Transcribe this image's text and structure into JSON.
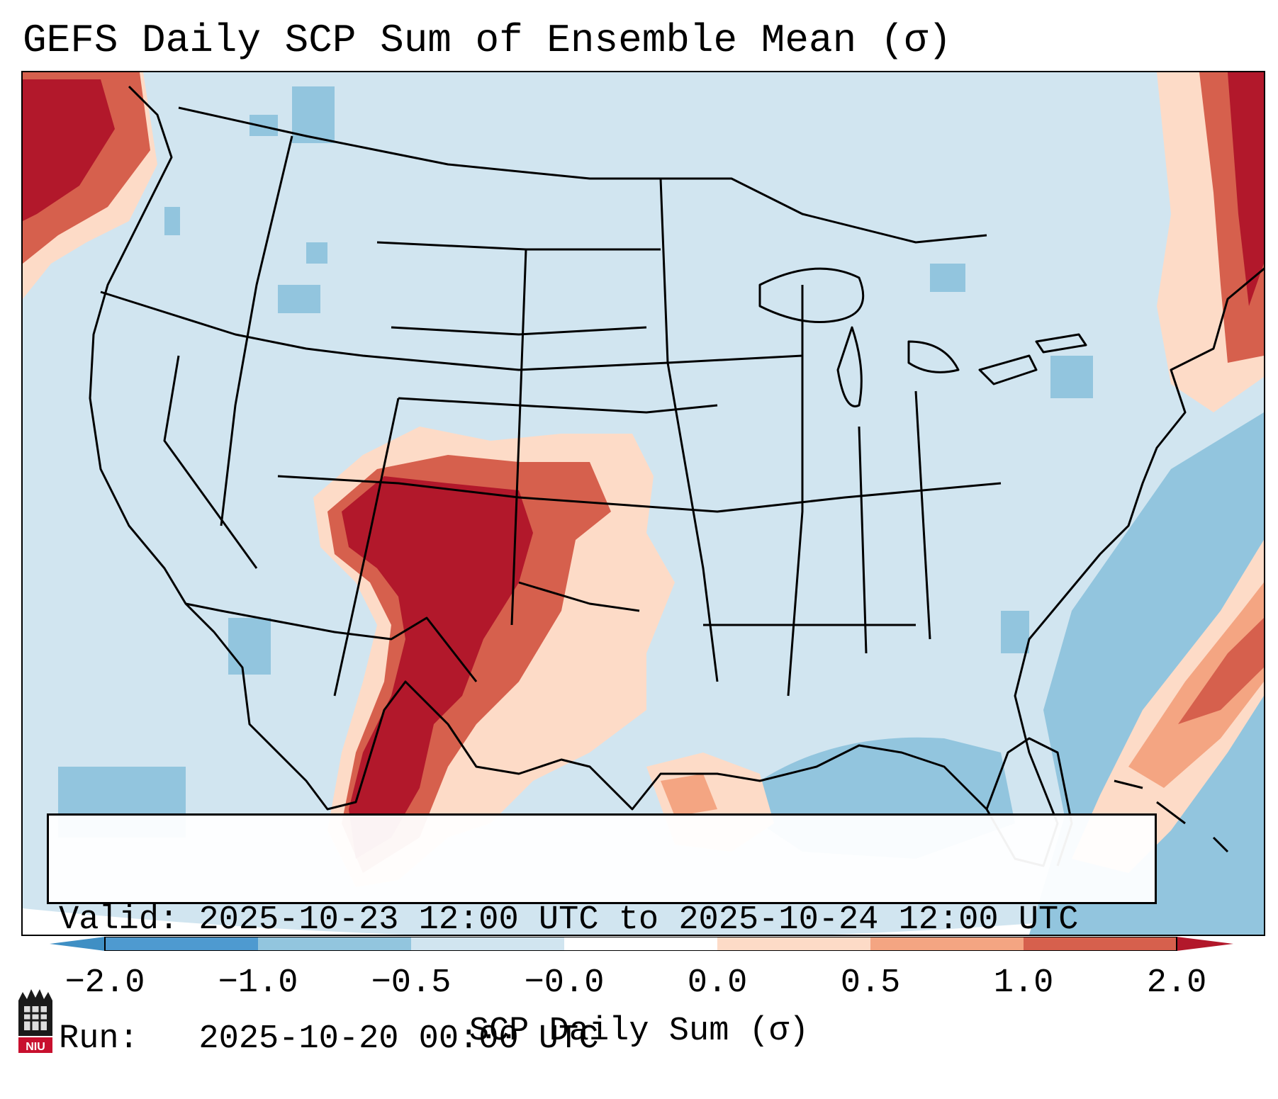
{
  "title": "GEFS Daily SCP Sum of Ensemble Mean (σ)",
  "map": {
    "region": "Continental United States",
    "palette": {
      "lt_neg2": "#3f8fc4",
      "neg2_neg1": "#4e9ad0",
      "neg1_neg05": "#92c5de",
      "neg05_0": "#d1e5f0",
      "zero_05": "#fddbc7",
      "pos05_1": "#f4a582",
      "pos1_2": "#d6604d",
      "gt_2": "#b2182b",
      "land_border": "#000000",
      "outside": "#ffffff"
    }
  },
  "info_box": {
    "valid_line": "Valid: 2025-10-23 12:00 UTC to 2025-10-24 12:00 UTC",
    "run_line": "Run:   2025-10-20 00:00 UTC"
  },
  "colorbar": {
    "ticks": [
      "−2.0",
      "−1.0",
      "−0.5",
      "−0.0",
      "0.0",
      "0.5",
      "1.0",
      "2.0"
    ],
    "label": "SCP Daily Sum (σ)",
    "colors": [
      "#3f8fc4",
      "#4e9ad0",
      "#92c5de",
      "#d1e5f0",
      "#ffffff",
      "#fddbc7",
      "#f4a582",
      "#d6604d",
      "#b2182b"
    ]
  },
  "logo_text": "NIU"
}
